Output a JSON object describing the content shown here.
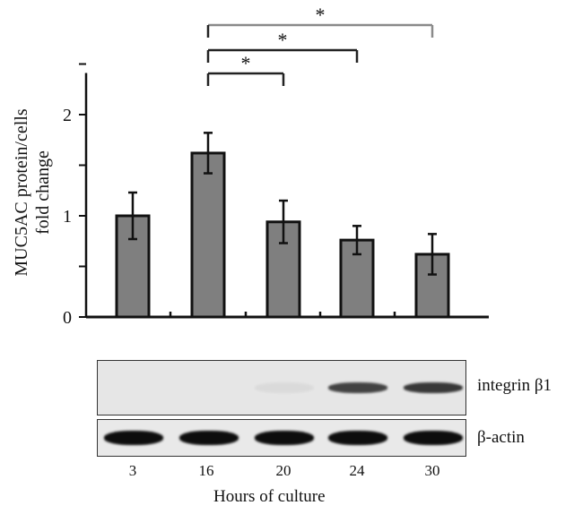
{
  "chart_data": {
    "type": "bar",
    "categories": [
      "3",
      "16",
      "20",
      "24",
      "30"
    ],
    "values": [
      1.0,
      1.62,
      0.94,
      0.76,
      0.62
    ],
    "errors": [
      0.23,
      0.2,
      0.21,
      0.14,
      0.2
    ],
    "ylabel_lines": [
      "MUC5AC protein/cells",
      "fold change"
    ],
    "xlabel": "Hours of culture",
    "ylim": [
      0,
      2.5
    ],
    "yticks": [
      "0",
      "1",
      "2"
    ],
    "bar_color": "#7f7f7f",
    "significance": [
      {
        "from": "16",
        "to": "20",
        "label": "*"
      },
      {
        "from": "16",
        "to": "24",
        "label": "*"
      },
      {
        "from": "16",
        "to": "30",
        "label": "*"
      }
    ],
    "blot": {
      "rows": [
        {
          "label": "integrin β1",
          "band_intensity": [
            0.0,
            0.0,
            0.05,
            0.8,
            0.85
          ]
        },
        {
          "label": "β-actin",
          "band_intensity": [
            1.0,
            1.0,
            1.0,
            1.0,
            1.0
          ]
        }
      ]
    }
  }
}
